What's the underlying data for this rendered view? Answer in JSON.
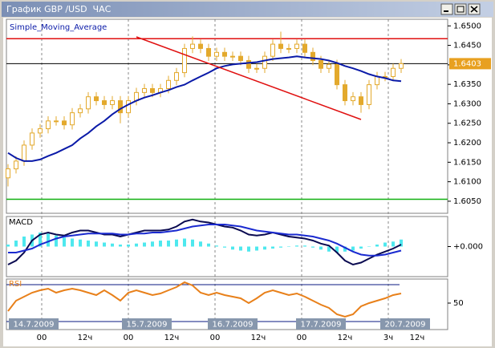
{
  "window_title": "График GBP /USD  ЧАС",
  "x_axis": {
    "xlim": [
      -0.2,
      54.8
    ],
    "xticks": [
      {
        "value": 4.2,
        "label": "00"
      },
      {
        "value": 9.6,
        "label": "12ч"
      },
      {
        "value": 15.0,
        "label": "00"
      },
      {
        "value": 20.4,
        "label": "12ч"
      },
      {
        "value": 25.8,
        "label": "00"
      },
      {
        "value": 31.2,
        "label": "12ч"
      },
      {
        "value": 36.6,
        "label": "00"
      },
      {
        "value": 42.0,
        "label": "12ч"
      },
      {
        "value": 47.4,
        "label": "3ч"
      },
      {
        "value": 51.0,
        "label": "12ч"
      }
    ],
    "date_labels": [
      {
        "value": 3.2,
        "label": "14.7.2009"
      },
      {
        "value": 17.3,
        "label": "15.7.2009"
      },
      {
        "value": 28.0,
        "label": "16.7.2009"
      },
      {
        "value": 39.0,
        "label": "17.7.2009"
      },
      {
        "value": 49.5,
        "label": "20.7.2009"
      }
    ],
    "grid": [
      4.2,
      15.0,
      25.8,
      36.6,
      47.4
    ]
  },
  "chart_data": [
    {
      "type": "candlestick",
      "color": "#e3a92c",
      "open": [
        1.611,
        1.6133,
        1.6153,
        1.6194,
        1.6225,
        1.6236,
        1.6256,
        1.6256,
        1.6246,
        1.6277,
        1.6287,
        1.6318,
        1.6308,
        1.6298,
        1.6308,
        1.6277,
        1.6308,
        1.6329,
        1.6339,
        1.6329,
        1.6339,
        1.636,
        1.638,
        1.6442,
        1.6453,
        1.6442,
        1.6422,
        1.6432,
        1.6422,
        1.6422,
        1.6411,
        1.6391,
        1.6391,
        1.6422,
        1.6453,
        1.6442,
        1.6442,
        1.6453,
        1.6432,
        1.6411,
        1.6391,
        1.6401,
        1.6349,
        1.6308,
        1.6318,
        1.6298,
        1.6349,
        1.637,
        1.637,
        1.6391
      ],
      "high": [
        1.6145,
        1.6165,
        1.6206,
        1.6237,
        1.6248,
        1.6268,
        1.6268,
        1.6268,
        1.6289,
        1.6299,
        1.633,
        1.633,
        1.632,
        1.632,
        1.632,
        1.632,
        1.6341,
        1.6351,
        1.6351,
        1.6351,
        1.6372,
        1.6392,
        1.6454,
        1.6473,
        1.6465,
        1.6454,
        1.6444,
        1.6444,
        1.6434,
        1.6434,
        1.6423,
        1.6403,
        1.6434,
        1.6465,
        1.6485,
        1.6454,
        1.6465,
        1.6465,
        1.6444,
        1.6423,
        1.6413,
        1.6413,
        1.6361,
        1.633,
        1.633,
        1.6361,
        1.6382,
        1.6382,
        1.6403,
        1.6415
      ],
      "low": [
        1.6088,
        1.6121,
        1.6141,
        1.6182,
        1.6213,
        1.6224,
        1.6244,
        1.6234,
        1.6234,
        1.6265,
        1.6275,
        1.6296,
        1.6286,
        1.6286,
        1.625,
        1.6265,
        1.6296,
        1.6317,
        1.6317,
        1.6317,
        1.6327,
        1.6348,
        1.6368,
        1.643,
        1.643,
        1.641,
        1.641,
        1.641,
        1.641,
        1.6399,
        1.6379,
        1.6379,
        1.6379,
        1.641,
        1.643,
        1.643,
        1.643,
        1.642,
        1.6399,
        1.6379,
        1.6379,
        1.6337,
        1.6296,
        1.6296,
        1.6277,
        1.6286,
        1.6337,
        1.6358,
        1.6358,
        1.6379
      ],
      "close": [
        1.6133,
        1.6153,
        1.6194,
        1.6225,
        1.6236,
        1.6256,
        1.6256,
        1.6246,
        1.6277,
        1.6287,
        1.6318,
        1.6308,
        1.6298,
        1.6308,
        1.6277,
        1.6308,
        1.6329,
        1.6339,
        1.6329,
        1.6339,
        1.636,
        1.638,
        1.6442,
        1.6453,
        1.6442,
        1.6422,
        1.6432,
        1.6422,
        1.6422,
        1.6411,
        1.6391,
        1.6391,
        1.6422,
        1.6453,
        1.6442,
        1.6442,
        1.6453,
        1.6432,
        1.6411,
        1.6391,
        1.6401,
        1.6349,
        1.6308,
        1.6318,
        1.6298,
        1.6349,
        1.637,
        1.637,
        1.6391,
        1.6403
      ],
      "series": [
        {
          "name": "Simple_Moving_Average",
          "color": "#0a1aa8",
          "values": [
            1.6174,
            1.6161,
            1.6153,
            1.6153,
            1.6157,
            1.6166,
            1.6174,
            1.6184,
            1.6194,
            1.6211,
            1.6225,
            1.6242,
            1.6256,
            1.6273,
            1.6287,
            1.6298,
            1.6308,
            1.6316,
            1.6322,
            1.6329,
            1.6335,
            1.6343,
            1.6349,
            1.636,
            1.637,
            1.638,
            1.6391,
            1.6397,
            1.6401,
            1.6403,
            1.6405,
            1.6407,
            1.6411,
            1.6415,
            1.6417,
            1.6419,
            1.6422,
            1.6419,
            1.6417,
            1.6415,
            1.6411,
            1.6405,
            1.6397,
            1.6391,
            1.6384,
            1.6376,
            1.637,
            1.6366,
            1.636,
            1.6358
          ]
        }
      ],
      "levels": [
        {
          "value": 1.6467,
          "color": "#e01010"
        },
        {
          "value": 1.6055,
          "color": "#10b010"
        }
      ],
      "ylim": [
        1.6019,
        1.6517
      ],
      "yticks": [
        {
          "value": 1.605,
          "label": "1.6050"
        },
        {
          "value": 1.61,
          "label": "1.6100"
        },
        {
          "value": 1.615,
          "label": "1.6150"
        },
        {
          "value": 1.62,
          "label": "1.6200"
        },
        {
          "value": 1.625,
          "label": "1.6250"
        },
        {
          "value": 1.63,
          "label": "1.6300"
        },
        {
          "value": 1.635,
          "label": "1.6350"
        },
        {
          "value": 1.64,
          "label": "1.6400"
        },
        {
          "value": 1.645,
          "label": "1.6450"
        },
        {
          "value": 1.65,
          "label": "1.6500"
        }
      ]
    },
    {
      "type": "macd",
      "title": "MACD",
      "histogram_color": "#4ee8ee",
      "histogram": [
        0.0002,
        0.0006,
        0.001,
        0.0012,
        0.0014,
        0.0013,
        0.0011,
        0.0009,
        0.0008,
        0.0007,
        0.0006,
        0.0005,
        0.0004,
        0.0003,
        0.0002,
        0.0002,
        0.0003,
        0.0004,
        0.0005,
        0.0006,
        0.0006,
        0.0007,
        0.0008,
        0.0007,
        0.0005,
        0.0003,
        0.0001,
        -0.0001,
        -0.0003,
        -0.0004,
        -0.0005,
        -0.0004,
        -0.0003,
        -0.0002,
        -0.0001,
        0.0,
        0.0001,
        0.0001,
        -0.0001,
        -0.0003,
        -0.0005,
        -0.0006,
        -0.0005,
        -0.0004,
        -0.0002,
        0.0,
        0.0002,
        0.0004,
        0.0005,
        0.0007
      ],
      "series": [
        {
          "color": "#0a0a50",
          "values": [
            -0.0018,
            -0.0014,
            -0.0006,
            0.0006,
            0.0012,
            0.0014,
            0.0012,
            0.0011,
            0.0014,
            0.0016,
            0.0016,
            0.0014,
            0.0012,
            0.0012,
            0.001,
            0.0012,
            0.0014,
            0.0016,
            0.0016,
            0.0016,
            0.0017,
            0.002,
            0.0025,
            0.0027,
            0.0025,
            0.0024,
            0.0022,
            0.002,
            0.0019,
            0.0016,
            0.0012,
            0.0011,
            0.0012,
            0.0014,
            0.0012,
            0.001,
            0.0009,
            0.0008,
            0.0006,
            0.0003,
            0.0001,
            -0.0006,
            -0.0014,
            -0.0018,
            -0.0016,
            -0.0012,
            -0.0008,
            -0.0005,
            -0.0002,
            0.0002
          ]
        },
        {
          "color": "#1a2ad0",
          "values": [
            -0.0006,
            -0.0006,
            -0.0004,
            -0.0002,
            0.0002,
            0.0005,
            0.0008,
            0.001,
            0.0011,
            0.0012,
            0.0013,
            0.0013,
            0.0013,
            0.0013,
            0.0012,
            0.0012,
            0.0013,
            0.0013,
            0.0014,
            0.0014,
            0.0015,
            0.0016,
            0.0018,
            0.002,
            0.0021,
            0.0022,
            0.0022,
            0.0022,
            0.0021,
            0.002,
            0.0018,
            0.0016,
            0.0015,
            0.0014,
            0.0013,
            0.0012,
            0.0012,
            0.0011,
            0.001,
            0.0008,
            0.0006,
            0.0003,
            -0.0001,
            -0.0005,
            -0.0008,
            -0.0009,
            -0.0009,
            -0.0008,
            -0.0006,
            -0.0004
          ]
        }
      ],
      "ylim": [
        -0.003,
        0.003
      ],
      "yticks": [
        {
          "value": 0,
          "label": "+0.000"
        }
      ]
    },
    {
      "type": "line",
      "title": "RSI",
      "color": "#e8801a",
      "values": [
        41.3,
        52.6,
        57.0,
        61.3,
        63.9,
        65.7,
        61.3,
        63.9,
        65.7,
        63.9,
        61.3,
        58.7,
        63.9,
        58.7,
        52.6,
        61.3,
        63.9,
        61.3,
        58.7,
        60.4,
        63.9,
        67.4,
        72.6,
        69.1,
        61.3,
        58.7,
        61.3,
        58.7,
        57.0,
        55.2,
        50.0,
        55.2,
        61.3,
        63.9,
        61.3,
        58.7,
        60.4,
        57.0,
        52.6,
        48.3,
        44.8,
        37.8,
        35.2,
        37.8,
        46.5,
        50.0,
        52.6,
        55.2,
        58.7,
        60.4
      ],
      "levels": [
        70,
        30
      ],
      "ylim": [
        21.3,
        76.1
      ],
      "yticks": [
        50
      ]
    }
  ]
}
